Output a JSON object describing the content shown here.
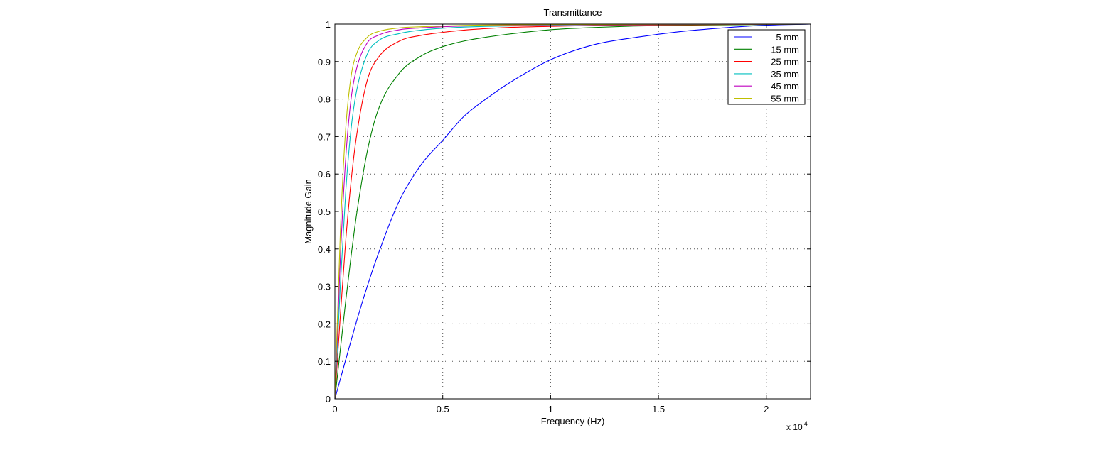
{
  "chart_data": {
    "type": "line",
    "title": "Transmittance",
    "xlabel": "Frequency (Hz)",
    "ylabel": "Magnitude Gain",
    "x_multiplier_label": "x 10",
    "x_multiplier_exponent": "4",
    "x_scale": 10000,
    "xlim": [
      0,
      22050
    ],
    "ylim": [
      0,
      1
    ],
    "xticks": [
      0,
      0.5,
      1,
      1.5,
      2
    ],
    "xtick_labels": [
      "0",
      "0.5",
      "1",
      "1.5",
      "2"
    ],
    "yticks": [
      0,
      0.1,
      0.2,
      0.3,
      0.4,
      0.5,
      0.6,
      0.7,
      0.8,
      0.9,
      1
    ],
    "ytick_labels": [
      "0",
      "0.1",
      "0.2",
      "0.3",
      "0.4",
      "0.5",
      "0.6",
      "0.7",
      "0.8",
      "0.9",
      "1"
    ],
    "grid": true,
    "legend_position": "top-right",
    "x": [
      0,
      250,
      500,
      750,
      1000,
      1500,
      2000,
      3000,
      4000,
      5000,
      6000,
      7000,
      8000,
      10000,
      12000,
      14000,
      16000,
      18000,
      20000,
      22050
    ],
    "series": [
      {
        "name": "5 mm",
        "color": "#0000ff",
        "values": [
          0,
          0.052,
          0.104,
          0.155,
          0.206,
          0.3,
          0.385,
          0.53,
          0.625,
          0.69,
          0.755,
          0.8,
          0.84,
          0.905,
          0.945,
          0.965,
          0.98,
          0.99,
          0.997,
          1.0
        ]
      },
      {
        "name": "15 mm",
        "color": "#008000",
        "values": [
          0,
          0.13,
          0.26,
          0.38,
          0.49,
          0.66,
          0.77,
          0.87,
          0.915,
          0.94,
          0.955,
          0.965,
          0.973,
          0.985,
          0.991,
          0.995,
          0.997,
          0.998,
          0.999,
          1.0
        ]
      },
      {
        "name": "25 mm",
        "color": "#ff0000",
        "values": [
          0,
          0.22,
          0.42,
          0.58,
          0.7,
          0.85,
          0.91,
          0.955,
          0.97,
          0.978,
          0.984,
          0.988,
          0.991,
          0.994,
          0.996,
          0.997,
          0.998,
          0.999,
          0.9995,
          1.0
        ]
      },
      {
        "name": "35 mm",
        "color": "#00bfbf",
        "values": [
          0,
          0.3,
          0.55,
          0.72,
          0.82,
          0.92,
          0.955,
          0.975,
          0.984,
          0.989,
          0.992,
          0.994,
          0.995,
          0.997,
          0.998,
          0.9985,
          0.999,
          0.9995,
          0.9998,
          1.0
        ]
      },
      {
        "name": "45 mm",
        "color": "#bf00bf",
        "values": [
          0,
          0.37,
          0.64,
          0.8,
          0.88,
          0.95,
          0.97,
          0.985,
          0.99,
          0.993,
          0.995,
          0.996,
          0.997,
          0.998,
          0.9985,
          0.999,
          0.9993,
          0.9996,
          0.9998,
          1.0
        ]
      },
      {
        "name": "55 mm",
        "color": "#bfbf00",
        "values": [
          0,
          0.44,
          0.72,
          0.86,
          0.92,
          0.965,
          0.98,
          0.99,
          0.993,
          0.995,
          0.9965,
          0.9975,
          0.998,
          0.9987,
          0.999,
          0.9993,
          0.9995,
          0.9997,
          0.9998,
          1.0
        ]
      }
    ]
  }
}
